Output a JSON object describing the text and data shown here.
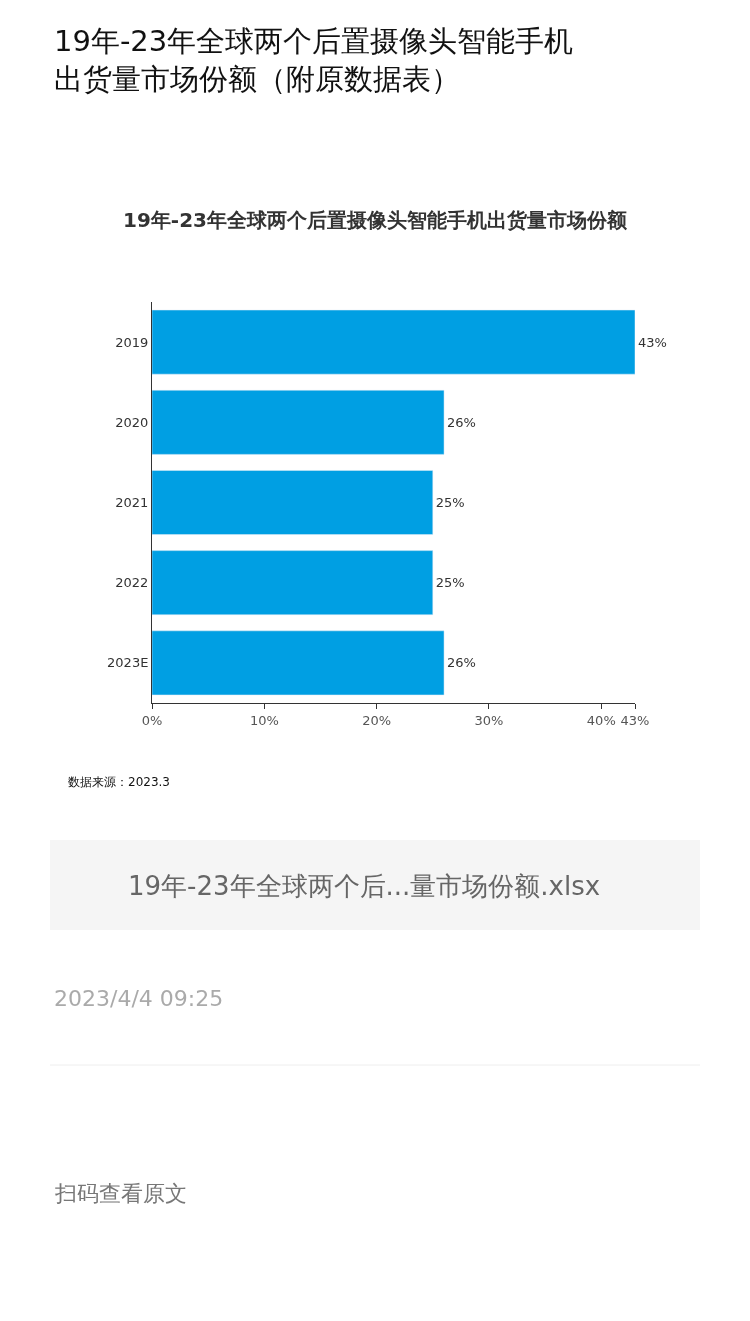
{
  "chart_data": {
    "type": "bar",
    "orientation": "horizontal",
    "title": "19年-23年全球两个后置摄像头智能手机出货量市场份额（附原数据表）",
    "subtitle": "19年-23年全球两个后置摄像头智能手机出货量市场份额",
    "categories": [
      "2019",
      "2020",
      "2021",
      "2022",
      "2023E"
    ],
    "values": [
      43,
      26,
      25,
      25,
      26
    ],
    "value_labels": [
      "43%",
      "26%",
      "25%",
      "25%",
      "26%"
    ],
    "color": "#009fe3",
    "xlim": [
      0,
      43
    ],
    "xticks": [
      {
        "value": 0,
        "label": "0%"
      },
      {
        "value": 10,
        "label": "10%"
      },
      {
        "value": 20,
        "label": "20%"
      },
      {
        "value": 30,
        "label": "30%"
      },
      {
        "value": 40,
        "label": "40%"
      },
      {
        "value": 43,
        "label": "43%"
      }
    ],
    "legend": false,
    "annotations": [
      "数据来源：2023.3",
      "19年-23年全球两个后...量市场份额.xlsx",
      "2023/4/4 09:25",
      "扫码查看原文"
    ]
  }
}
